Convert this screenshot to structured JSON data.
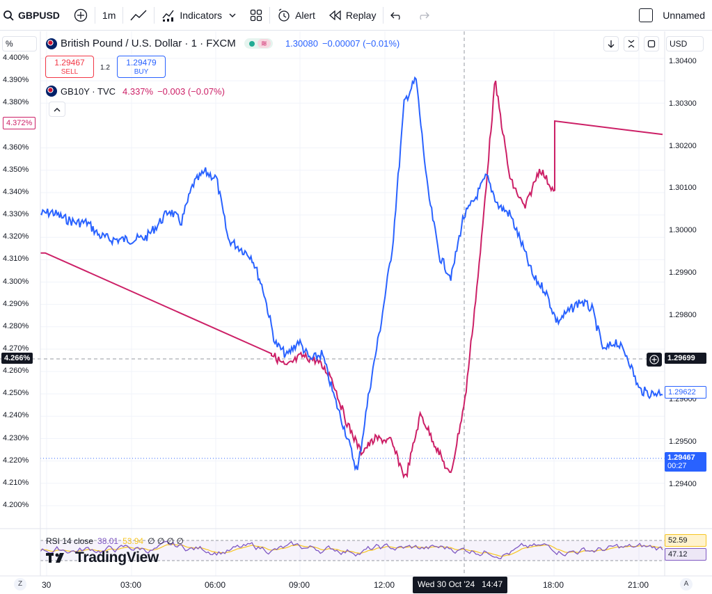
{
  "toolbar": {
    "symbol": "GBPUSD",
    "interval": "1m",
    "indicators": "Indicators",
    "alert": "Alert",
    "replay": "Replay",
    "layout_name": "Unnamed"
  },
  "legend": {
    "main_title": "British Pound / U.S. Dollar · 1 · FXCM",
    "main_price": "1.30080",
    "main_change": "−0.00007 (−0.01%)",
    "sell_price": "1.29467",
    "sell_label": "SELL",
    "spread": "1.2",
    "buy_price": "1.29479",
    "buy_label": "BUY",
    "compare_title": "GB10Y · TVC",
    "compare_value": "4.337%",
    "compare_change": "−0.003 (−0.07%)"
  },
  "left_axis": {
    "unit_label": "%",
    "ticks": [
      "4.400%",
      "4.390%",
      "4.380%",
      "4.360%",
      "4.350%",
      "4.340%",
      "4.330%",
      "4.320%",
      "4.310%",
      "4.300%",
      "4.290%",
      "4.280%",
      "4.270%",
      "4.260%",
      "4.250%",
      "4.240%",
      "4.230%",
      "4.220%",
      "4.210%",
      "4.200%"
    ],
    "tag_top": "4.372%",
    "tag_crosshair": "4.266%"
  },
  "right_axis": {
    "currency": "USD",
    "ticks": [
      "1.30400",
      "1.30300",
      "1.30200",
      "1.30100",
      "1.30000",
      "1.29900",
      "1.29800",
      "1.29600",
      "1.29500",
      "1.29400"
    ],
    "tag_crosshair": "1.29699",
    "tag_last": "1.29622",
    "tag_bid": "1.29467",
    "tag_countdown": "00:27"
  },
  "time_axis": {
    "ticks": [
      "30",
      "03:00",
      "06:00",
      "09:00",
      "12:00",
      "18:00",
      "21:00"
    ],
    "crosshair_label": "Wed 30 Oct '24   14:47",
    "left_btn": "Z",
    "right_btn": "A"
  },
  "rsi": {
    "legend": "RSI 14 close",
    "value1": "38.01",
    "value2": "53.94",
    "extras": "∅ ∅ ∅ ∅",
    "tag_upper": "52.59",
    "tag_lower": "47.12"
  },
  "watermark": "TradingView",
  "colors": {
    "gbpusd_line": "#2962ff",
    "gb10y_line": "#cc1f66",
    "rsi_line": "#7e57c2",
    "rsi_ma": "#f7c520",
    "sell": "#f23645",
    "buy": "#2962ff"
  },
  "chart_data": [
    {
      "type": "line",
      "series": [
        {
          "name": "British Pound / U.S. Dollar · 1 · FXCM",
          "values": [
            1.3004,
            1.30045,
            1.3003,
            1.3002,
            1.3002,
            1.2999,
            1.2998,
            1.2998,
            1.2998,
            1.29985,
            1.30015,
            1.3005,
            1.3002,
            1.3011,
            1.3014,
            1.30125,
            1.2998,
            1.2996,
            1.2994,
            1.2986,
            1.29735,
            1.29705,
            1.2974,
            1.29695,
            1.2971,
            1.2961,
            1.29525,
            1.2943,
            1.2962,
            1.2978,
            1.29965,
            1.30305,
            1.3036,
            1.30095,
            1.2994,
            1.2989,
            1.3003,
            1.30075,
            1.3013,
            1.3006,
            1.3004,
            1.2997,
            1.2989,
            1.2986,
            1.29785,
            1.2981,
            1.29835,
            1.29815,
            1.29715,
            1.2974,
            1.29705,
            1.29625,
            1.29615,
            1.2962
          ]
        },
        {
          "name": "GB10Y · TVC",
          "values": [
            4.313,
            4.291,
            4.268,
            4.262,
            4.267,
            4.265,
            4.258,
            4.238,
            4.224,
            4.23,
            4.229,
            4.212,
            4.241,
            4.227,
            4.213,
            4.248,
            4.312,
            4.39,
            4.346,
            4.333,
            4.351,
            4.34,
            4.365,
            4.372,
            4.37,
            4.366
          ]
        }
      ]
    },
    {
      "type": "line",
      "title": "RSI 14 close",
      "series": [
        {
          "values": [
            38.01
          ]
        },
        {
          "values": [
            53.94
          ]
        }
      ]
    }
  ]
}
